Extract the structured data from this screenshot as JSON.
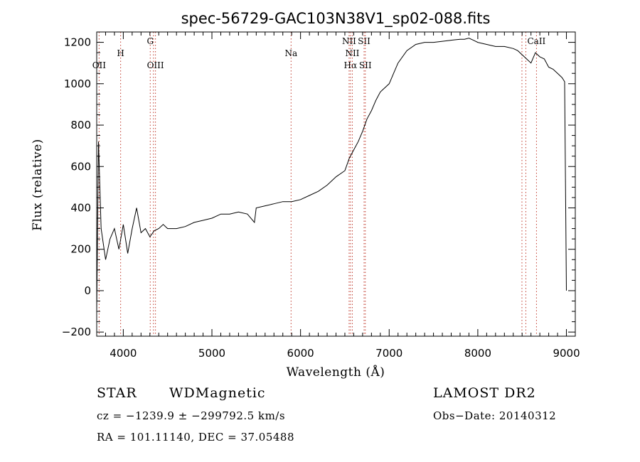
{
  "chart_data": {
    "type": "line",
    "title": "spec-56729-GAC103N38V1_sp02-088.fits",
    "xlabel": "Wavelength (Å)",
    "ylabel": "Flux (relative)",
    "xlim": [
      3700,
      9100
    ],
    "ylim": [
      -220,
      1250
    ],
    "x_ticks": [
      4000,
      5000,
      6000,
      7000,
      8000,
      9000
    ],
    "y_ticks": [
      -200,
      0,
      200,
      400,
      600,
      800,
      1000,
      1200
    ],
    "grid": false,
    "series": [
      {
        "x": [
          3700,
          3720,
          3750,
          3800,
          3850,
          3900,
          3950,
          4000,
          4050,
          4100,
          4150,
          4200,
          4250,
          4300,
          4350,
          4400,
          4450,
          4500,
          4600,
          4700,
          4800,
          4900,
          5000,
          5100,
          5200,
          5300,
          5400,
          5480,
          5500,
          5600,
          5700,
          5800,
          5900,
          6000,
          6100,
          6200,
          6300,
          6400,
          6500,
          6550,
          6600,
          6650,
          6700,
          6750,
          6800,
          6850,
          6900,
          7000,
          7050,
          7100,
          7200,
          7300,
          7400,
          7500,
          7600,
          7700,
          7800,
          7850,
          7900,
          7950,
          8000,
          8100,
          8200,
          8300,
          8400,
          8450,
          8500,
          8550,
          8600,
          8650,
          8700,
          8750,
          8800,
          8850,
          8900,
          8950,
          8980,
          9000
        ],
        "y": [
          -100,
          720,
          300,
          150,
          250,
          300,
          200,
          320,
          180,
          300,
          400,
          280,
          300,
          260,
          290,
          300,
          320,
          300,
          300,
          310,
          330,
          340,
          350,
          370,
          370,
          380,
          370,
          330,
          400,
          410,
          420,
          430,
          430,
          440,
          460,
          480,
          510,
          550,
          580,
          640,
          680,
          720,
          770,
          830,
          870,
          920,
          960,
          1000,
          1050,
          1100,
          1160,
          1190,
          1200,
          1200,
          1205,
          1210,
          1215,
          1215,
          1220,
          1210,
          1200,
          1190,
          1180,
          1180,
          1170,
          1160,
          1140,
          1120,
          1100,
          1150,
          1130,
          1120,
          1080,
          1070,
          1050,
          1030,
          1010,
          0
        ]
      }
    ],
    "lines": [
      {
        "x": 3727,
        "label": "OII",
        "row": "low"
      },
      {
        "x": 3970,
        "label": "H",
        "row": "mid"
      },
      {
        "x": 4304,
        "label": "G",
        "row": "high"
      },
      {
        "x": 4340,
        "label": "",
        "row": "none"
      },
      {
        "x": 4363,
        "label": "OIII",
        "row": "low"
      },
      {
        "x": 5893,
        "label": "Na",
        "row": "mid"
      },
      {
        "x": 6548,
        "label": "NII",
        "row": "high"
      },
      {
        "x": 6563,
        "label": "Hα",
        "row": "low"
      },
      {
        "x": 6584,
        "label": "NII",
        "row": "mid"
      },
      {
        "x": 6717,
        "label": "SII",
        "row": "high"
      },
      {
        "x": 6731,
        "label": "SII",
        "row": "low"
      },
      {
        "x": 8498,
        "label": "",
        "row": "none"
      },
      {
        "x": 8542,
        "label": "",
        "row": "none"
      },
      {
        "x": 8662,
        "label": "CaII",
        "row": "high"
      }
    ]
  },
  "footer": {
    "class_label": "STAR",
    "subclass_label": "WDMagnetic",
    "survey": "LAMOST DR2",
    "cz": "cz = −1239.9 ± −299792.5 km/s",
    "obs_date": "Obs−Date: 20140312",
    "coords": "RA = 101.11140, DEC =  37.05488"
  }
}
